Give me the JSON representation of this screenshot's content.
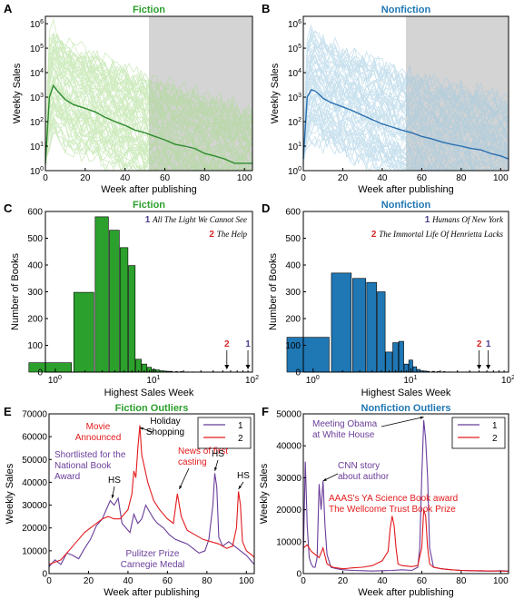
{
  "colors": {
    "fiction": "#2ca02c",
    "fiction_light": "#a8dc8c",
    "fiction_mean": "#2e8b2e",
    "nonfiction": "#1f77b4",
    "nonfiction_light": "#9ecae1",
    "nonfiction_mean": "#2a6fb0",
    "shade": "#d4d4d4",
    "purple": "#6a3d9a",
    "red": "#e31a1c",
    "book1": "#4b3c8c",
    "book2": "#d62728"
  },
  "chart_data": [
    {
      "panel": "A",
      "type": "line",
      "title": "Fiction",
      "xlabel": "Week after publishing",
      "ylabel": "Weekly Sales",
      "xlim": [
        0,
        104
      ],
      "ylim_log10": [
        0,
        6.3
      ],
      "y_scale": "log",
      "xticks": [
        "0",
        "20",
        "40",
        "60",
        "80",
        "100"
      ],
      "yticks": [
        "10^0",
        "10^1",
        "10^2",
        "10^3",
        "10^4",
        "10^5",
        "10^6"
      ],
      "shaded_region": [
        52,
        104
      ],
      "series": [
        {
          "x": [
            0,
            2,
            4,
            6,
            8,
            10,
            14,
            20,
            25,
            30,
            35,
            40,
            45,
            50,
            55,
            60,
            65,
            70,
            75,
            80,
            85,
            90,
            95,
            100,
            104
          ],
          "values": [
            2,
            1000,
            3000,
            1800,
            1200,
            800,
            500,
            350,
            250,
            150,
            100,
            70,
            45,
            35,
            25,
            18,
            12,
            10,
            8,
            5,
            4,
            3,
            2,
            2,
            2
          ]
        }
      ]
    },
    {
      "panel": "B",
      "type": "line",
      "title": "Nonfiction",
      "xlabel": "Week after publishing",
      "ylabel": "Weekly Sales",
      "xlim": [
        0,
        104
      ],
      "ylim_log10": [
        0,
        6.3
      ],
      "y_scale": "log",
      "xticks": [
        "0",
        "20",
        "40",
        "60",
        "80",
        "100"
      ],
      "yticks": [
        "10^0",
        "10^1",
        "10^2",
        "10^3",
        "10^4",
        "10^5",
        "10^6"
      ],
      "shaded_region": [
        52,
        104
      ],
      "series": [
        {
          "x": [
            0,
            2,
            4,
            6,
            8,
            10,
            14,
            20,
            25,
            30,
            35,
            40,
            45,
            50,
            55,
            60,
            65,
            70,
            75,
            80,
            85,
            90,
            95,
            100,
            104
          ],
          "values": [
            3,
            1000,
            2000,
            1800,
            1300,
            900,
            600,
            400,
            280,
            180,
            120,
            80,
            60,
            45,
            35,
            25,
            20,
            15,
            12,
            10,
            8,
            7,
            5,
            4,
            3
          ]
        }
      ]
    },
    {
      "panel": "C",
      "type": "bar",
      "title": "Fiction",
      "xlabel": "Highest Sales Week",
      "ylabel": "Number of Books",
      "x_scale": "log",
      "ylim": [
        0,
        600
      ],
      "xticks": [
        "10^0",
        "10^1",
        "10^2"
      ],
      "yticks": [
        "0",
        "100",
        "200",
        "300",
        "400",
        "500",
        "600"
      ],
      "x": [
        1,
        2,
        3,
        4,
        5,
        6,
        7,
        8,
        9,
        10,
        11,
        12,
        13,
        14,
        15,
        17,
        19,
        22,
        25,
        30,
        40,
        55,
        90
      ],
      "values": [
        35,
        298,
        580,
        530,
        465,
        398,
        48,
        30,
        18,
        10,
        8,
        5,
        4,
        3,
        3,
        2,
        2,
        1,
        1,
        1,
        1,
        1,
        1
      ],
      "annotations": [
        {
          "rank": "1",
          "text": "All The Light We Cannot See",
          "x": 90
        },
        {
          "rank": "2",
          "text": "The Help",
          "x": 55
        }
      ]
    },
    {
      "panel": "D",
      "type": "bar",
      "title": "Nonfiction",
      "xlabel": "Highest Sales Week",
      "ylabel": "Number of Books",
      "x_scale": "log",
      "ylim": [
        0,
        600
      ],
      "xticks": [
        "10^0",
        "10^1",
        "10^2"
      ],
      "yticks": [
        "0",
        "100",
        "200",
        "300",
        "400",
        "500",
        "600"
      ],
      "x": [
        1,
        2,
        3,
        4,
        5,
        6,
        7,
        8,
        9,
        10,
        11,
        12,
        13,
        14,
        15,
        17,
        19,
        22,
        25,
        30,
        40,
        50,
        62
      ],
      "values": [
        130,
        370,
        350,
        335,
        300,
        75,
        110,
        115,
        30,
        45,
        20,
        10,
        5,
        4,
        3,
        3,
        2,
        2,
        1,
        1,
        1,
        1,
        1
      ],
      "annotations": [
        {
          "rank": "1",
          "text": "Humans Of New York",
          "x": 62
        },
        {
          "rank": "2",
          "text": "The Immortal Life Of Henrietta Lacks",
          "x": 50
        }
      ]
    },
    {
      "panel": "E",
      "type": "line",
      "title": "Fiction Outliers",
      "xlabel": "Week after publishing",
      "ylabel": "Weekly Sales",
      "xlim": [
        0,
        104
      ],
      "ylim": [
        0,
        70000
      ],
      "xticks": [
        "0",
        "20",
        "40",
        "60",
        "80",
        "100"
      ],
      "yticks": [
        "0",
        "10000",
        "20000",
        "30000",
        "40000",
        "50000",
        "60000",
        "70000"
      ],
      "legend": "top-right",
      "series": [
        {
          "name": "1",
          "x": [
            0,
            3,
            6,
            9,
            12,
            15,
            18,
            21,
            24,
            27,
            29,
            31,
            32,
            33,
            35,
            37,
            39,
            41,
            43,
            45,
            47,
            49,
            51,
            53,
            55,
            58,
            61,
            64,
            67,
            70,
            73,
            76,
            79,
            81,
            83,
            84,
            85,
            86,
            88,
            91,
            94,
            97,
            100,
            103,
            104
          ],
          "values": [
            3000,
            6000,
            4000,
            9000,
            8000,
            6500,
            11000,
            15000,
            21000,
            24000,
            28000,
            32000,
            31000,
            30000,
            33000,
            22000,
            20000,
            18000,
            26000,
            22000,
            24000,
            30000,
            27000,
            24000,
            22000,
            20000,
            17000,
            15000,
            14000,
            13000,
            11000,
            9000,
            10000,
            15000,
            30000,
            44000,
            38000,
            16000,
            12000,
            14000,
            12000,
            10000,
            8000,
            5000,
            4000
          ]
        },
        {
          "name": "2",
          "x": [
            0,
            3,
            6,
            9,
            12,
            15,
            18,
            21,
            24,
            27,
            30,
            33,
            36,
            38,
            40,
            42,
            43,
            44,
            45,
            46,
            47,
            48,
            50,
            53,
            56,
            60,
            63,
            65,
            67,
            70,
            74,
            78,
            82,
            86,
            90,
            93,
            95,
            96,
            97,
            98,
            100,
            103,
            104
          ],
          "values": [
            4000,
            5000,
            6000,
            9000,
            12000,
            15000,
            18000,
            20000,
            22000,
            24000,
            25000,
            24000,
            24000,
            26000,
            28000,
            35000,
            45000,
            42000,
            55000,
            65000,
            52000,
            48000,
            40000,
            32000,
            28000,
            24000,
            22000,
            35000,
            25000,
            19000,
            17000,
            15000,
            14000,
            13000,
            11000,
            12000,
            20000,
            36000,
            30000,
            14000,
            10000,
            8000,
            7000
          ]
        }
      ],
      "annotations": [
        "Movie Announced",
        "Holiday Shopping",
        "Shortlisted for the National Book Award",
        "News of first casting",
        "HS",
        "HS",
        "HS",
        "Pulitzer Prize",
        "Carnegie Medal"
      ]
    },
    {
      "panel": "F",
      "type": "line",
      "title": "Nonfiction Outliers",
      "xlabel": "Week after publishing",
      "ylabel": "Weekly Sales",
      "xlim": [
        0,
        104
      ],
      "ylim": [
        0,
        50000
      ],
      "xticks": [
        "0",
        "20",
        "40",
        "60",
        "80",
        "100"
      ],
      "yticks": [
        "0",
        "10000",
        "20000",
        "30000",
        "40000",
        "50000"
      ],
      "legend": "top-right",
      "series": [
        {
          "name": "1",
          "x": [
            0,
            1,
            2,
            3,
            4,
            5,
            6,
            7,
            8,
            9,
            10,
            11,
            12,
            14,
            17,
            20,
            25,
            30,
            35,
            40,
            45,
            50,
            55,
            58,
            59,
            60,
            61,
            62,
            63,
            64,
            66,
            70,
            75,
            80,
            85,
            90,
            95,
            100,
            104
          ],
          "values": [
            5000,
            35000,
            15000,
            5000,
            3000,
            2000,
            2000,
            5000,
            28000,
            20000,
            29000,
            15000,
            6000,
            2000,
            1500,
            1200,
            1000,
            900,
            800,
            900,
            1000,
            1200,
            1000,
            2000,
            8000,
            30000,
            48000,
            42000,
            30000,
            8000,
            2000,
            1500,
            1200,
            1000,
            900,
            800,
            800,
            900,
            800
          ]
        },
        {
          "name": "2",
          "x": [
            0,
            2,
            4,
            6,
            8,
            10,
            12,
            15,
            20,
            25,
            30,
            35,
            40,
            43,
            44,
            45,
            46,
            47,
            48,
            50,
            55,
            58,
            60,
            61,
            62,
            63,
            64,
            66,
            70,
            75,
            80,
            85,
            90,
            95,
            100,
            104
          ],
          "values": [
            8000,
            9000,
            7000,
            6000,
            5000,
            8000,
            3000,
            2000,
            1500,
            1800,
            2000,
            2500,
            4000,
            7000,
            14000,
            18000,
            15000,
            8000,
            3000,
            2500,
            2200,
            2500,
            8000,
            20000,
            18000,
            8000,
            3000,
            2000,
            1500,
            1200,
            1000,
            900,
            900,
            800,
            800,
            700
          ]
        }
      ],
      "annotations": [
        "Meeting Obama at White House",
        "CNN story about author",
        "AAAS's YA Science Book award",
        "The Wellcome Trust Book Prize"
      ]
    }
  ],
  "labels": {
    "letters": [
      "A",
      "B",
      "C",
      "D",
      "E",
      "F"
    ]
  }
}
